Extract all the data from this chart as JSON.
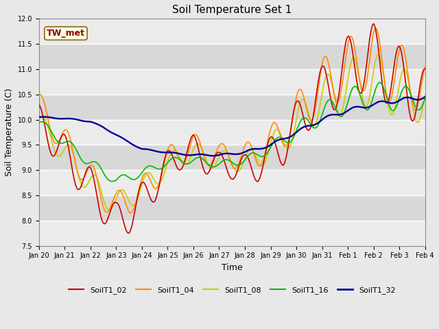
{
  "title": "Soil Temperature Set 1",
  "xlabel": "Time",
  "ylabel": "Soil Temperature (C)",
  "ylim": [
    7.5,
    12.0
  ],
  "yticks": [
    7.5,
    8.0,
    8.5,
    9.0,
    9.5,
    10.0,
    10.5,
    11.0,
    11.5,
    12.0
  ],
  "annotation": "TW_met",
  "annotation_color": "#8B0000",
  "annotation_bg": "#FFFFE0",
  "annotation_border": "#8B6914",
  "fig_bg": "#E8E8E8",
  "plot_bg": "#D8D8D8",
  "stripe_color": "#EBEBEB",
  "line_colors": {
    "SoilT1_02": "#CC0000",
    "SoilT1_04": "#FF8C00",
    "SoilT1_08": "#CCCC00",
    "SoilT1_16": "#00BB00",
    "SoilT1_32": "#000099"
  },
  "legend_labels": [
    "SoilT1_02",
    "SoilT1_04",
    "SoilT1_08",
    "SoilT1_16",
    "SoilT1_32"
  ],
  "xtick_labels": [
    "Jan 20",
    "Jan 21",
    "Jan 22",
    "Jan 23",
    "Jan 24",
    "Jan 25",
    "Jan 26",
    "Jan 27",
    "Jan 28",
    "Jan 29",
    "Jan 30",
    "Jan 31",
    "Feb 1",
    "Feb 2",
    "Feb 3",
    "Feb 4"
  ],
  "title_fontsize": 11,
  "axis_fontsize": 9,
  "tick_fontsize": 7,
  "legend_fontsize": 8,
  "linewidth": 1.2
}
